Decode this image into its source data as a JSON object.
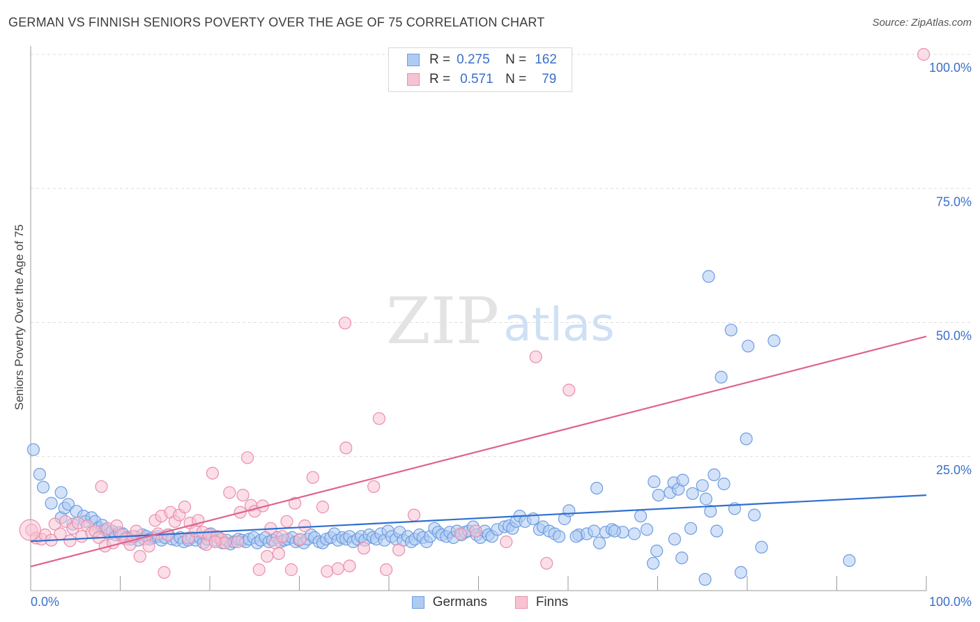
{
  "title": "GERMAN VS FINNISH SENIORS POVERTY OVER THE AGE OF 75 CORRELATION CHART",
  "source": "Source: ZipAtlas.com",
  "watermark": {
    "zip": "ZIP",
    "atlas": "atlas"
  },
  "legend": {
    "r_label": "R =",
    "n_label": "N =",
    "rows": [
      {
        "r": "0.275",
        "n": "162",
        "fill": "#aecbf2",
        "stroke": "#6d9de0"
      },
      {
        "r": "0.571",
        "n": "79",
        "fill": "#f7c3d3",
        "stroke": "#ea8eab"
      }
    ]
  },
  "bottom_legend": [
    "Germans",
    "Finns"
  ],
  "chart_data": {
    "type": "scatter",
    "title": "GERMAN VS FINNISH SENIORS POVERTY OVER THE AGE OF 75 CORRELATION CHART",
    "xlabel": "",
    "ylabel": "Seniors Poverty Over the Age of 75",
    "xlim": [
      0,
      100
    ],
    "ylim": [
      0,
      100
    ],
    "x_tick_labels": [
      "0.0%",
      "100.0%"
    ],
    "y_tick_labels": [
      "25.0%",
      "50.0%",
      "75.0%",
      "100.0%"
    ],
    "y_ticks": [
      25,
      50,
      75,
      100
    ],
    "grid": true,
    "legend_position": "top-center",
    "series": [
      {
        "name": "Germans",
        "color": "#6d9de0",
        "fill": "#aecbf2",
        "line_color": "#2f6fd1",
        "trend": [
          [
            0,
            9.2
          ],
          [
            100,
            17.8
          ]
        ],
        "points": [
          [
            0.3,
            26.3
          ],
          [
            1,
            21.7
          ],
          [
            1.4,
            19.3
          ],
          [
            2.3,
            16.3
          ],
          [
            3.4,
            18.3
          ],
          [
            3.4,
            13.6
          ],
          [
            3.8,
            15.4
          ],
          [
            4.2,
            16.1
          ],
          [
            4.7,
            12.4
          ],
          [
            5.1,
            14.8
          ],
          [
            5.9,
            13.9
          ],
          [
            6.1,
            12.9
          ],
          [
            6.8,
            13.6
          ],
          [
            7.2,
            12.9
          ],
          [
            7.6,
            11.7
          ],
          [
            8,
            12.2
          ],
          [
            8.3,
            11.3
          ],
          [
            8.8,
            10.6
          ],
          [
            9.1,
            11.1
          ],
          [
            9.5,
            10.4
          ],
          [
            9.9,
            10.8
          ],
          [
            10.3,
            10.6
          ],
          [
            10.7,
            9.9
          ],
          [
            11.2,
            9.6
          ],
          [
            11.6,
            10.1
          ],
          [
            12,
            9.4
          ],
          [
            12.5,
            10.4
          ],
          [
            12.9,
            10.1
          ],
          [
            13.3,
            9.6
          ],
          [
            13.7,
            9.9
          ],
          [
            14.2,
            10.1
          ],
          [
            14.6,
            9.4
          ],
          [
            15,
            9.9
          ],
          [
            15.4,
            10.4
          ],
          [
            15.8,
            9.6
          ],
          [
            16.3,
            9.4
          ],
          [
            16.7,
            9.9
          ],
          [
            17.1,
            9.1
          ],
          [
            17.6,
            9.4
          ],
          [
            18,
            9.9
          ],
          [
            18.4,
            9.4
          ],
          [
            18.9,
            9.9
          ],
          [
            19.3,
            8.9
          ],
          [
            19.7,
            9.6
          ],
          [
            20.1,
            10.6
          ],
          [
            20.6,
            9.4
          ],
          [
            21,
            9.9
          ],
          [
            21.4,
            8.9
          ],
          [
            21.9,
            9.4
          ],
          [
            22.3,
            8.7
          ],
          [
            22.7,
            9.1
          ],
          [
            23.2,
            9.6
          ],
          [
            23.6,
            9.4
          ],
          [
            24,
            9.1
          ],
          [
            24.4,
            9.6
          ],
          [
            24.9,
            9.9
          ],
          [
            25.3,
            8.9
          ],
          [
            25.7,
            9.4
          ],
          [
            26.2,
            9.9
          ],
          [
            26.6,
            9.1
          ],
          [
            27,
            9.4
          ],
          [
            27.5,
            9.9
          ],
          [
            27.9,
            9.1
          ],
          [
            28.3,
            9.4
          ],
          [
            28.7,
            9.6
          ],
          [
            29.2,
            9.9
          ],
          [
            29.6,
            9.1
          ],
          [
            30,
            9.4
          ],
          [
            30.5,
            8.9
          ],
          [
            30.9,
            9.6
          ],
          [
            31.3,
            10.4
          ],
          [
            31.7,
            9.9
          ],
          [
            32.2,
            9.1
          ],
          [
            32.6,
            8.9
          ],
          [
            33,
            9.6
          ],
          [
            33.5,
            9.9
          ],
          [
            33.9,
            10.6
          ],
          [
            34.3,
            9.4
          ],
          [
            34.8,
            9.9
          ],
          [
            35.2,
            9.6
          ],
          [
            35.6,
            10.1
          ],
          [
            36,
            9.1
          ],
          [
            36.5,
            9.6
          ],
          [
            36.9,
            10.1
          ],
          [
            37.3,
            9.4
          ],
          [
            37.8,
            10.4
          ],
          [
            38.2,
            9.9
          ],
          [
            38.6,
            9.6
          ],
          [
            39.1,
            10.6
          ],
          [
            39.5,
            9.4
          ],
          [
            39.9,
            11.1
          ],
          [
            40.3,
            10.1
          ],
          [
            40.8,
            9.6
          ],
          [
            41.2,
            10.9
          ],
          [
            41.6,
            9.4
          ],
          [
            42.1,
            10.1
          ],
          [
            42.5,
            9.1
          ],
          [
            42.9,
            9.6
          ],
          [
            43.4,
            10.4
          ],
          [
            43.8,
            9.9
          ],
          [
            44.2,
            9.1
          ],
          [
            44.6,
            10.1
          ],
          [
            45.1,
            11.6
          ],
          [
            45.5,
            10.9
          ],
          [
            45.9,
            10.4
          ],
          [
            46.4,
            10.1
          ],
          [
            46.8,
            10.9
          ],
          [
            47.2,
            9.9
          ],
          [
            47.6,
            11.1
          ],
          [
            48.1,
            10.4
          ],
          [
            48.5,
            10.9
          ],
          [
            48.9,
            11.1
          ],
          [
            49.4,
            11.9
          ],
          [
            49.8,
            10.4
          ],
          [
            50.2,
            9.9
          ],
          [
            50.7,
            11.1
          ],
          [
            51.1,
            10.4
          ],
          [
            51.5,
            10.1
          ],
          [
            52.1,
            11.4
          ],
          [
            52.9,
            11.9
          ],
          [
            53.4,
            12.1
          ],
          [
            53.8,
            11.6
          ],
          [
            54.2,
            12.9
          ],
          [
            54.6,
            13.9
          ],
          [
            55.2,
            12.9
          ],
          [
            56.1,
            13.4
          ],
          [
            56.8,
            11.4
          ],
          [
            57.2,
            11.9
          ],
          [
            57.9,
            11.1
          ],
          [
            58.5,
            10.6
          ],
          [
            59,
            10.1
          ],
          [
            59.6,
            13.4
          ],
          [
            60.1,
            14.9
          ],
          [
            61.2,
            10.4
          ],
          [
            62.1,
            10.6
          ],
          [
            62.9,
            11.1
          ],
          [
            63.5,
            8.9
          ],
          [
            64.2,
            10.9
          ],
          [
            64.9,
            11.4
          ],
          [
            63.2,
            19.1
          ],
          [
            66.1,
            10.9
          ],
          [
            67.4,
            10.6
          ],
          [
            68.1,
            13.9
          ],
          [
            68.8,
            11.4
          ],
          [
            69.6,
            20.3
          ],
          [
            70.1,
            17.8
          ],
          [
            71.4,
            18.3
          ],
          [
            71.8,
            20.1
          ],
          [
            72.3,
            18.9
          ],
          [
            72.8,
            20.6
          ],
          [
            73.9,
            18.1
          ],
          [
            75,
            19.6
          ],
          [
            75.4,
            17.1
          ],
          [
            75.9,
            14.8
          ],
          [
            76.3,
            21.6
          ],
          [
            77.4,
            19.9
          ],
          [
            78.6,
            15.3
          ],
          [
            79.9,
            28.3
          ],
          [
            80.8,
            14.1
          ],
          [
            81.6,
            8.1
          ],
          [
            75.7,
            58.6
          ],
          [
            78.2,
            48.6
          ],
          [
            77.1,
            39.8
          ],
          [
            80.1,
            45.6
          ],
          [
            83,
            46.6
          ],
          [
            91.4,
            5.6
          ],
          [
            76.6,
            11.1
          ],
          [
            72.7,
            6.1
          ],
          [
            69.9,
            7.4
          ],
          [
            71.9,
            9.6
          ],
          [
            73.7,
            11.6
          ],
          [
            75.3,
            2.1
          ],
          [
            79.3,
            3.4
          ],
          [
            69.5,
            5.1
          ],
          [
            60.9,
            10.1
          ],
          [
            65.2,
            11.1
          ]
        ]
      },
      {
        "name": "Finns",
        "color": "#ea8eab",
        "fill": "#f7c3d3",
        "line_color": "#e0618d",
        "trend": [
          [
            0,
            4.5
          ],
          [
            100,
            47.4
          ]
        ],
        "points": [
          [
            0.1,
            11.3
          ],
          [
            0.6,
            9.8
          ],
          [
            1.2,
            9.6
          ],
          [
            1.6,
            10.4
          ],
          [
            2.3,
            9.4
          ],
          [
            2.7,
            12.4
          ],
          [
            3.3,
            10.6
          ],
          [
            3.9,
            12.9
          ],
          [
            4.4,
            9.3
          ],
          [
            4.7,
            11.6
          ],
          [
            5.3,
            12.6
          ],
          [
            5.7,
            10.1
          ],
          [
            6.3,
            12.1
          ],
          [
            6.8,
            10.8
          ],
          [
            7.2,
            11.1
          ],
          [
            7.6,
            9.9
          ],
          [
            7.9,
            19.4
          ],
          [
            8.3,
            8.3
          ],
          [
            8.6,
            11.6
          ],
          [
            9.2,
            8.9
          ],
          [
            9.6,
            12.1
          ],
          [
            10.1,
            10.4
          ],
          [
            10.6,
            9.6
          ],
          [
            11.1,
            8.6
          ],
          [
            11.4,
            10.1
          ],
          [
            11.8,
            11.1
          ],
          [
            12.2,
            6.4
          ],
          [
            12.7,
            9.6
          ],
          [
            13.2,
            8.3
          ],
          [
            13.9,
            13.1
          ],
          [
            14.2,
            10.6
          ],
          [
            14.6,
            13.9
          ],
          [
            14.9,
            3.4
          ],
          [
            15.3,
            10.4
          ],
          [
            15.6,
            14.6
          ],
          [
            16.1,
            12.9
          ],
          [
            16.6,
            14.1
          ],
          [
            17.2,
            15.6
          ],
          [
            17.6,
            9.8
          ],
          [
            17.8,
            12.6
          ],
          [
            18.4,
            11.1
          ],
          [
            18.7,
            13.1
          ],
          [
            19.2,
            10.9
          ],
          [
            19.6,
            8.6
          ],
          [
            19.9,
            10.4
          ],
          [
            20.3,
            21.9
          ],
          [
            20.8,
            10.1
          ],
          [
            21.3,
            9.6
          ],
          [
            21.7,
            8.9
          ],
          [
            22.2,
            18.3
          ],
          [
            23.1,
            9.1
          ],
          [
            23.4,
            14.6
          ],
          [
            23.7,
            17.8
          ],
          [
            24.2,
            24.8
          ],
          [
            24.6,
            15.9
          ],
          [
            25,
            14.8
          ],
          [
            25.5,
            3.9
          ],
          [
            25.9,
            15.8
          ],
          [
            26.4,
            6.4
          ],
          [
            26.8,
            11.6
          ],
          [
            27.3,
            8.9
          ],
          [
            27.7,
            6.9
          ],
          [
            28.1,
            10.1
          ],
          [
            28.6,
            12.9
          ],
          [
            29.1,
            3.9
          ],
          [
            29.5,
            16.3
          ],
          [
            30.6,
            12.1
          ],
          [
            31.5,
            21.1
          ],
          [
            32.6,
            15.6
          ],
          [
            33.1,
            3.6
          ],
          [
            34.3,
            4.1
          ],
          [
            35.2,
            26.6
          ],
          [
            35.6,
            4.6
          ],
          [
            37.2,
            7.9
          ],
          [
            38.3,
            19.4
          ],
          [
            38.9,
            32.1
          ],
          [
            39.7,
            3.9
          ],
          [
            41.1,
            7.6
          ],
          [
            42.8,
            14.1
          ],
          [
            35.1,
            49.9
          ],
          [
            48,
            10.6
          ],
          [
            49.7,
            11.1
          ],
          [
            53.1,
            9.1
          ],
          [
            56.4,
            43.6
          ],
          [
            57.6,
            5.1
          ],
          [
            60.1,
            37.4
          ],
          [
            99.7,
            100
          ],
          [
            20.6,
            9.1
          ],
          [
            30.1,
            9.6
          ]
        ]
      }
    ]
  }
}
